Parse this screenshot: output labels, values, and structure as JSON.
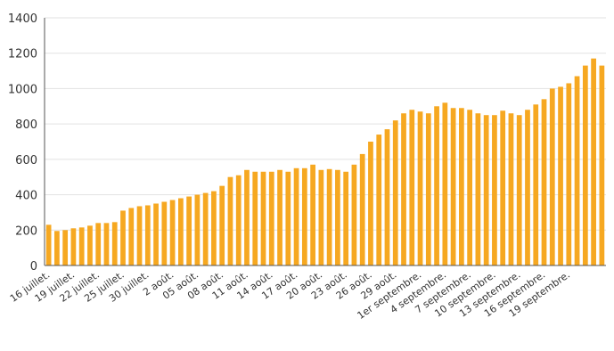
{
  "chart_data": {
    "type": "bar",
    "ylim": [
      0,
      1400
    ],
    "yticks": [
      0,
      200,
      400,
      600,
      800,
      1000,
      1200,
      1400
    ],
    "grid": true,
    "legend": "none",
    "bar_color": "#f6a821",
    "gridline_color": "#e2e2e2",
    "axis_color": "#555555",
    "x_tick_labels": [
      "16 juillet.",
      "19 juillet.",
      "22 juillet.",
      "25 juillet.",
      "30 juillet.",
      "2 août.",
      "05 août.",
      "08 août.",
      "11 août.",
      "14 août.",
      "17 août.",
      "20 août.",
      "23 août.",
      "26 août.",
      "29 août.",
      "1er septembre.",
      "4 septembre.",
      "7 septembre.",
      "10 septembre.",
      "13 septembre.",
      "16 septembre.",
      "19 septembre."
    ],
    "values": [
      230,
      195,
      200,
      210,
      215,
      225,
      240,
      240,
      245,
      310,
      325,
      335,
      340,
      350,
      360,
      370,
      380,
      390,
      400,
      410,
      420,
      450,
      500,
      510,
      540,
      530,
      530,
      530,
      540,
      530,
      550,
      550,
      570,
      540,
      545,
      540,
      530,
      570,
      630,
      700,
      740,
      770,
      820,
      860,
      880,
      870,
      860,
      900,
      920,
      890,
      890,
      880,
      860,
      850,
      850,
      875,
      860,
      850,
      880,
      910,
      940,
      1000,
      1010,
      1030,
      1070,
      1130,
      1170,
      1130
    ]
  }
}
